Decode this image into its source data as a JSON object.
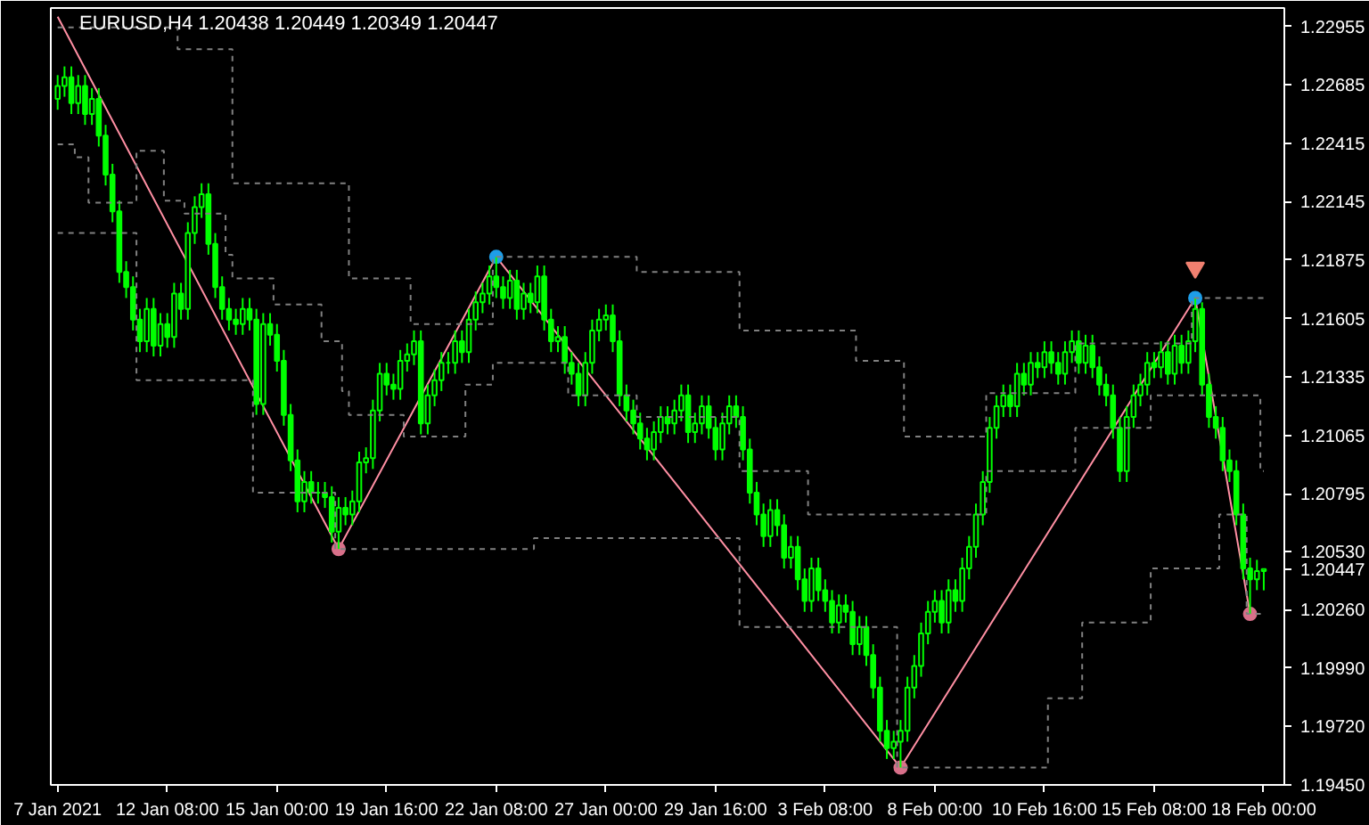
{
  "chart_data": {
    "type": "candlestick",
    "title": "EURUSD,H4 1.20438 1.20449 1.20349 1.20447",
    "color": "#00ff00",
    "categories": [
      "7 Jan 2021",
      null,
      null,
      null,
      null,
      null,
      null,
      null,
      null,
      null,
      null,
      null,
      null,
      null,
      null,
      null,
      "12 Jan 08:00",
      null,
      null,
      null,
      null,
      null,
      null,
      null,
      null,
      null,
      null,
      null,
      null,
      null,
      null,
      null,
      "15 Jan 00:00",
      null,
      null,
      null,
      null,
      null,
      null,
      null,
      null,
      null,
      null,
      null,
      null,
      null,
      null,
      null,
      "19 Jan 16:00",
      null,
      null,
      null,
      null,
      null,
      null,
      null,
      null,
      null,
      null,
      null,
      null,
      null,
      null,
      null,
      "22 Jan 08:00",
      null,
      null,
      null,
      null,
      null,
      null,
      null,
      null,
      null,
      null,
      null,
      null,
      null,
      null,
      null,
      "27 Jan 00:00",
      null,
      null,
      null,
      null,
      null,
      null,
      null,
      null,
      null,
      null,
      null,
      null,
      null,
      null,
      null,
      "29 Jan 16:00",
      null,
      null,
      null,
      null,
      null,
      null,
      null,
      null,
      null,
      null,
      null,
      null,
      null,
      null,
      null,
      "3 Feb 08:00",
      null,
      null,
      null,
      null,
      null,
      null,
      null,
      null,
      null,
      null,
      null,
      null,
      null,
      null,
      null,
      "8 Feb 00:00",
      null,
      null,
      null,
      null,
      null,
      null,
      null,
      null,
      null,
      null,
      null,
      null,
      null,
      null,
      null,
      "10 Feb 16:00",
      null,
      null,
      null,
      null,
      null,
      null,
      null,
      null,
      null,
      null,
      null,
      null,
      null,
      null,
      null,
      "15 Feb 08:00",
      null,
      null,
      null,
      null,
      null,
      null,
      null,
      null,
      null,
      null,
      null,
      null,
      null,
      null,
      null,
      "18 Feb 00:00"
    ],
    "ohlc": [
      [
        1.2262,
        1.2273,
        1.2257,
        1.2268
      ],
      [
        1.2268,
        1.2277,
        1.2263,
        1.2272
      ],
      [
        1.2272,
        1.2277,
        1.2255,
        1.226
      ],
      [
        1.226,
        1.2273,
        1.2255,
        1.2268
      ],
      [
        1.2268,
        1.2273,
        1.225,
        1.2255
      ],
      [
        1.2255,
        1.2267,
        1.225,
        1.2262
      ],
      [
        1.2262,
        1.2267,
        1.224,
        1.2245
      ],
      [
        1.2245,
        1.225,
        1.2222,
        1.2227
      ],
      [
        1.2227,
        1.2232,
        1.2205,
        1.221
      ],
      [
        1.221,
        1.2215,
        1.2177,
        1.2182
      ],
      [
        1.2182,
        1.2187,
        1.217,
        1.2175
      ],
      [
        1.2175,
        1.218,
        1.2155,
        1.216
      ],
      [
        1.216,
        1.2165,
        1.2145,
        1.215
      ],
      [
        1.215,
        1.217,
        1.2145,
        1.2165
      ],
      [
        1.2165,
        1.217,
        1.2143,
        1.2148
      ],
      [
        1.2148,
        1.2163,
        1.2143,
        1.2158
      ],
      [
        1.2158,
        1.2163,
        1.2147,
        1.2152
      ],
      [
        1.2152,
        1.2177,
        1.2147,
        1.2172
      ],
      [
        1.2172,
        1.2177,
        1.216,
        1.2165
      ],
      [
        1.2165,
        1.2205,
        1.216,
        1.22
      ],
      [
        1.22,
        1.2217,
        1.2195,
        1.2212
      ],
      [
        1.2212,
        1.2223,
        1.2207,
        1.2218
      ],
      [
        1.2218,
        1.2223,
        1.219,
        1.2195
      ],
      [
        1.2195,
        1.22,
        1.217,
        1.2175
      ],
      [
        1.2175,
        1.218,
        1.216,
        1.2165
      ],
      [
        1.2165,
        1.217,
        1.2155,
        1.216
      ],
      [
        1.216,
        1.2165,
        1.2153,
        1.2158
      ],
      [
        1.2158,
        1.217,
        1.2153,
        1.2165
      ],
      [
        1.2165,
        1.217,
        1.2155,
        1.216
      ],
      [
        1.216,
        1.2165,
        1.2116,
        1.2121
      ],
      [
        1.2121,
        1.2163,
        1.2116,
        1.2158
      ],
      [
        1.2158,
        1.2163,
        1.2148,
        1.2153
      ],
      [
        1.2153,
        1.2158,
        1.2136,
        1.2141
      ],
      [
        1.2141,
        1.2146,
        1.2111,
        1.2116
      ],
      [
        1.2116,
        1.2121,
        1.209,
        1.2095
      ],
      [
        1.2095,
        1.21,
        1.2071,
        1.2076
      ],
      [
        1.2076,
        1.209,
        1.2071,
        1.2085
      ],
      [
        1.2085,
        1.209,
        1.2075,
        1.208
      ],
      [
        1.208,
        1.2085,
        1.2075,
        1.208
      ],
      [
        1.208,
        1.2085,
        1.2073,
        1.2078
      ],
      [
        1.2078,
        1.2083,
        1.2057,
        1.2062
      ],
      [
        1.2062,
        1.2078,
        1.2054,
        1.2073
      ],
      [
        1.2073,
        1.2078,
        1.2065,
        1.207
      ],
      [
        1.207,
        1.2081,
        1.2065,
        1.2076
      ],
      [
        1.2076,
        1.2099,
        1.2071,
        1.2094
      ],
      [
        1.2094,
        1.2101,
        1.2089,
        1.2096
      ],
      [
        1.2096,
        1.2123,
        1.2091,
        1.2118
      ],
      [
        1.2118,
        1.214,
        1.2113,
        1.2135
      ],
      [
        1.2135,
        1.214,
        1.2125,
        1.213
      ],
      [
        1.213,
        1.2135,
        1.2123,
        1.2128
      ],
      [
        1.2128,
        1.2146,
        1.2123,
        1.2141
      ],
      [
        1.2141,
        1.2149,
        1.2136,
        1.2144
      ],
      [
        1.2144,
        1.2155,
        1.2139,
        1.215
      ],
      [
        1.215,
        1.2155,
        1.2107,
        1.2112
      ],
      [
        1.2112,
        1.213,
        1.2107,
        1.2125
      ],
      [
        1.2125,
        1.2137,
        1.212,
        1.2132
      ],
      [
        1.2132,
        1.2145,
        1.2127,
        1.214
      ],
      [
        1.214,
        1.2145,
        1.2135,
        1.214
      ],
      [
        1.214,
        1.2155,
        1.2135,
        1.215
      ],
      [
        1.215,
        1.2155,
        1.214,
        1.2145
      ],
      [
        1.2145,
        1.2165,
        1.214,
        1.216
      ],
      [
        1.216,
        1.2173,
        1.2155,
        1.2168
      ],
      [
        1.2168,
        1.2177,
        1.2163,
        1.2172
      ],
      [
        1.2172,
        1.2185,
        1.2167,
        1.218
      ],
      [
        1.218,
        1.2189,
        1.217,
        1.2175
      ],
      [
        1.2175,
        1.218,
        1.2165,
        1.217
      ],
      [
        1.217,
        1.2183,
        1.2165,
        1.2178
      ],
      [
        1.2178,
        1.2183,
        1.216,
        1.2165
      ],
      [
        1.2165,
        1.2177,
        1.216,
        1.2172
      ],
      [
        1.2172,
        1.2177,
        1.2163,
        1.2168
      ],
      [
        1.2168,
        1.2185,
        1.2163,
        1.218
      ],
      [
        1.218,
        1.2185,
        1.2155,
        1.216
      ],
      [
        1.216,
        1.2165,
        1.2145,
        1.215
      ],
      [
        1.215,
        1.2157,
        1.2145,
        1.2152
      ],
      [
        1.2152,
        1.2157,
        1.2135,
        1.214
      ],
      [
        1.214,
        1.2145,
        1.213,
        1.2135
      ],
      [
        1.2135,
        1.214,
        1.212,
        1.2125
      ],
      [
        1.2125,
        1.2145,
        1.212,
        1.214
      ],
      [
        1.214,
        1.216,
        1.2135,
        1.2155
      ],
      [
        1.2155,
        1.2165,
        1.215,
        1.216
      ],
      [
        1.216,
        1.2167,
        1.2155,
        1.2162
      ],
      [
        1.2162,
        1.2167,
        1.2145,
        1.215
      ],
      [
        1.215,
        1.2155,
        1.212,
        1.2125
      ],
      [
        1.2125,
        1.213,
        1.2113,
        1.2118
      ],
      [
        1.2118,
        1.2123,
        1.2107,
        1.2112
      ],
      [
        1.2112,
        1.2117,
        1.21,
        1.2105
      ],
      [
        1.2105,
        1.211,
        1.2095,
        1.21
      ],
      [
        1.21,
        1.2113,
        1.2095,
        1.2108
      ],
      [
        1.2108,
        1.212,
        1.2103,
        1.2115
      ],
      [
        1.2115,
        1.212,
        1.2107,
        1.2112
      ],
      [
        1.2112,
        1.2123,
        1.2107,
        1.2118
      ],
      [
        1.2118,
        1.213,
        1.2113,
        1.2125
      ],
      [
        1.2125,
        1.213,
        1.2103,
        1.2108
      ],
      [
        1.2108,
        1.2117,
        1.2103,
        1.2112
      ],
      [
        1.2112,
        1.2125,
        1.2107,
        1.212
      ],
      [
        1.212,
        1.2125,
        1.2105,
        1.211
      ],
      [
        1.211,
        1.2115,
        1.2095,
        1.21
      ],
      [
        1.21,
        1.2117,
        1.2095,
        1.2112
      ],
      [
        1.2112,
        1.2125,
        1.2107,
        1.212
      ],
      [
        1.212,
        1.2125,
        1.211,
        1.2115
      ],
      [
        1.2115,
        1.212,
        1.2095,
        1.21
      ],
      [
        1.21,
        1.2105,
        1.2075,
        1.208
      ],
      [
        1.208,
        1.2085,
        1.2065,
        1.207
      ],
      [
        1.207,
        1.2075,
        1.2055,
        1.206
      ],
      [
        1.206,
        1.2077,
        1.2055,
        1.2072
      ],
      [
        1.2072,
        1.2077,
        1.206,
        1.2065
      ],
      [
        1.2065,
        1.207,
        1.2045,
        1.205
      ],
      [
        1.205,
        1.206,
        1.2045,
        1.2055
      ],
      [
        1.2055,
        1.206,
        1.2035,
        1.204
      ],
      [
        1.204,
        1.2045,
        1.2025,
        1.203
      ],
      [
        1.203,
        1.205,
        1.2025,
        1.2045
      ],
      [
        1.2045,
        1.205,
        1.203,
        1.2035
      ],
      [
        1.2035,
        1.204,
        1.2025,
        1.203
      ],
      [
        1.203,
        1.2035,
        1.2015,
        1.202
      ],
      [
        1.202,
        1.2033,
        1.2015,
        1.2028
      ],
      [
        1.2028,
        1.2033,
        1.202,
        1.2025
      ],
      [
        1.2025,
        1.203,
        1.2005,
        1.201
      ],
      [
        1.201,
        1.2023,
        1.2005,
        1.2018
      ],
      [
        1.2018,
        1.2023,
        1.2,
        1.2005
      ],
      [
        1.2005,
        1.201,
        1.1985,
        1.199
      ],
      [
        1.199,
        1.1995,
        1.1965,
        1.197
      ],
      [
        1.197,
        1.1975,
        1.1957,
        1.1962
      ],
      [
        1.1962,
        1.197,
        1.1957,
        1.1965
      ],
      [
        1.1965,
        1.1975,
        1.1953,
        1.197
      ],
      [
        1.197,
        1.1995,
        1.1965,
        1.199
      ],
      [
        1.199,
        1.2005,
        1.1985,
        1.2
      ],
      [
        1.2,
        1.202,
        1.1995,
        1.2015
      ],
      [
        1.2015,
        1.203,
        1.201,
        1.2025
      ],
      [
        1.2025,
        1.2035,
        1.202,
        1.203
      ],
      [
        1.203,
        1.2035,
        1.2015,
        1.202
      ],
      [
        1.202,
        1.204,
        1.2015,
        1.2035
      ],
      [
        1.2035,
        1.204,
        1.2025,
        1.203
      ],
      [
        1.203,
        1.205,
        1.2025,
        1.2045
      ],
      [
        1.2045,
        1.206,
        1.204,
        1.2055
      ],
      [
        1.2055,
        1.2075,
        1.205,
        1.207
      ],
      [
        1.207,
        1.209,
        1.2065,
        1.2085
      ],
      [
        1.2085,
        1.2115,
        1.208,
        1.211
      ],
      [
        1.211,
        1.2125,
        1.2105,
        1.212
      ],
      [
        1.212,
        1.213,
        1.2115,
        1.2125
      ],
      [
        1.2125,
        1.213,
        1.2115,
        1.212
      ],
      [
        1.212,
        1.214,
        1.2115,
        1.2135
      ],
      [
        1.2135,
        1.214,
        1.2125,
        1.213
      ],
      [
        1.213,
        1.2145,
        1.2125,
        1.214
      ],
      [
        1.214,
        1.2145,
        1.2133,
        1.2138
      ],
      [
        1.2138,
        1.215,
        1.2133,
        1.2145
      ],
      [
        1.2145,
        1.215,
        1.2135,
        1.214
      ],
      [
        1.214,
        1.2145,
        1.213,
        1.2135
      ],
      [
        1.2135,
        1.215,
        1.213,
        1.2145
      ],
      [
        1.2145,
        1.2155,
        1.214,
        1.215
      ],
      [
        1.215,
        1.2155,
        1.2135,
        1.214
      ],
      [
        1.214,
        1.2153,
        1.2135,
        1.2148
      ],
      [
        1.2148,
        1.2153,
        1.2133,
        1.2138
      ],
      [
        1.2138,
        1.2143,
        1.2125,
        1.213
      ],
      [
        1.213,
        1.2135,
        1.212,
        1.2125
      ],
      [
        1.2125,
        1.213,
        1.2105,
        1.211
      ],
      [
        1.211,
        1.2115,
        1.2085,
        1.209
      ],
      [
        1.209,
        1.212,
        1.2085,
        1.2115
      ],
      [
        1.2115,
        1.213,
        1.211,
        1.2125
      ],
      [
        1.2125,
        1.2135,
        1.212,
        1.213
      ],
      [
        1.213,
        1.2145,
        1.2125,
        1.214
      ],
      [
        1.214,
        1.2145,
        1.2133,
        1.2138
      ],
      [
        1.2138,
        1.215,
        1.2133,
        1.2145
      ],
      [
        1.2145,
        1.215,
        1.213,
        1.2135
      ],
      [
        1.2135,
        1.2153,
        1.213,
        1.2148
      ],
      [
        1.2148,
        1.2153,
        1.2135,
        1.214
      ],
      [
        1.214,
        1.2155,
        1.2135,
        1.215
      ],
      [
        1.215,
        1.217,
        1.2145,
        1.2165
      ],
      [
        1.2165,
        1.2168,
        1.2125,
        1.213
      ],
      [
        1.213,
        1.2135,
        1.211,
        1.2115
      ],
      [
        1.2115,
        1.212,
        1.2105,
        1.211
      ],
      [
        1.211,
        1.2115,
        1.209,
        1.2095
      ],
      [
        1.2095,
        1.21,
        1.2085,
        1.209
      ],
      [
        1.209,
        1.2095,
        1.2065,
        1.207
      ],
      [
        1.207,
        1.2075,
        1.204,
        1.2045
      ],
      [
        1.2045,
        1.205,
        1.2024,
        1.204
      ],
      [
        1.204,
        1.2049,
        1.2035,
        1.20438
      ],
      [
        1.20438,
        1.20449,
        1.20349,
        1.20447
      ]
    ],
    "series": [
      {
        "type": "step",
        "color": "#808080",
        "line_style": "dashed",
        "values": [
          1.2295,
          1.2295,
          1.2295,
          1.2295,
          1.2295,
          1.2295,
          1.2295,
          1.2295,
          1.2295,
          1.2295,
          1.2295,
          1.2295,
          1.2295,
          1.2295,
          1.2295,
          1.2295,
          1.2295,
          1.2295,
          1.2285,
          1.2285,
          1.2285,
          1.2285,
          1.2285,
          1.2285,
          1.2285,
          1.2285,
          1.2223,
          1.2223,
          1.2223,
          1.2223,
          1.2223,
          1.2223,
          1.2223,
          1.2223,
          1.2223,
          1.2223,
          1.2223,
          1.2223,
          1.2223,
          1.2223,
          1.2223,
          1.2223,
          1.2223,
          1.2179,
          1.2179,
          1.2179,
          1.2179,
          1.2179,
          1.2179,
          1.2179,
          1.2179,
          1.2179,
          1.2158,
          1.2158,
          1.2158,
          1.2158,
          1.2158,
          1.2158,
          1.2158,
          1.2158,
          1.2158,
          1.2158,
          1.2158,
          1.2158,
          1.2189,
          1.2189,
          1.2189,
          1.2189,
          1.2189,
          1.2189,
          1.2189,
          1.2189,
          1.2189,
          1.2189,
          1.2189,
          1.2189,
          1.2189,
          1.2189,
          1.2189,
          1.2189,
          1.2189,
          1.2189,
          1.2189,
          1.2189,
          1.2189,
          1.2182,
          1.2182,
          1.2182,
          1.2182,
          1.2182,
          1.2182,
          1.2182,
          1.2182,
          1.2182,
          1.2182,
          1.2182,
          1.2182,
          1.2182,
          1.2182,
          1.2182,
          1.2155,
          1.2155,
          1.2155,
          1.2155,
          1.2155,
          1.2155,
          1.2155,
          1.2155,
          1.2155,
          1.2155,
          1.2155,
          1.2155,
          1.2155,
          1.2155,
          1.2155,
          1.2155,
          1.2155,
          1.2141,
          1.2141,
          1.2141,
          1.2141,
          1.2141,
          1.2141,
          1.2141,
          1.2106,
          1.2106,
          1.2106,
          1.2106,
          1.2106,
          1.2106,
          1.2106,
          1.2106,
          1.2106,
          1.2106,
          1.2106,
          1.2106,
          1.2126,
          1.2126,
          1.2126,
          1.2126,
          1.2126,
          1.2126,
          1.2126,
          1.2126,
          1.2126,
          1.2126,
          1.2126,
          1.2126,
          1.2126,
          1.2149,
          1.2149,
          1.2149,
          1.2149,
          1.2149,
          1.2149,
          1.2149,
          1.2149,
          1.2149,
          1.2149,
          1.2149,
          1.2149,
          1.2149,
          1.2149,
          1.2149,
          1.2149,
          1.2149,
          1.217,
          1.217,
          1.217,
          1.217,
          1.217,
          1.217,
          1.217,
          1.217,
          1.217,
          1.217,
          1.217
        ]
      },
      {
        "type": "step",
        "color": "#808080",
        "line_style": "dashed",
        "values": [
          1.2241,
          1.2241,
          1.2241,
          1.2235,
          1.2235,
          1.2214,
          1.2214,
          1.2214,
          1.2214,
          1.2214,
          1.2214,
          1.2214,
          1.2238,
          1.2238,
          1.2238,
          1.2238,
          1.2215,
          1.2215,
          1.2215,
          1.2209,
          1.2209,
          1.2209,
          1.2209,
          1.2209,
          1.2209,
          1.219,
          1.2179,
          1.2179,
          1.2179,
          1.2179,
          1.2179,
          1.2179,
          1.2167,
          1.2167,
          1.2167,
          1.2167,
          1.2167,
          1.2167,
          1.2167,
          1.215,
          1.215,
          1.215,
          1.2127,
          1.2116,
          1.2116,
          1.2116,
          1.2116,
          1.2116,
          1.2116,
          1.2116,
          1.2116,
          1.2106,
          1.2106,
          1.2106,
          1.2106,
          1.2106,
          1.2106,
          1.2106,
          1.2106,
          1.2106,
          1.213,
          1.213,
          1.213,
          1.213,
          1.214,
          1.214,
          1.214,
          1.214,
          1.214,
          1.214,
          1.214,
          1.214,
          1.214,
          1.214,
          1.214,
          1.2125,
          1.2125,
          1.2125,
          1.2125,
          1.2125,
          1.2125,
          1.2125,
          1.2125,
          1.2125,
          1.2125,
          1.2115,
          1.2115,
          1.2115,
          1.2115,
          1.2115,
          1.2115,
          1.2115,
          1.2115,
          1.2115,
          1.2115,
          1.2115,
          1.2115,
          1.2115,
          1.2115,
          1.2115,
          1.209,
          1.209,
          1.209,
          1.209,
          1.209,
          1.209,
          1.209,
          1.209,
          1.209,
          1.209,
          1.207,
          1.207,
          1.207,
          1.207,
          1.207,
          1.207,
          1.207,
          1.207,
          1.207,
          1.207,
          1.207,
          1.207,
          1.207,
          1.207,
          1.207,
          1.207,
          1.207,
          1.207,
          1.207,
          1.207,
          1.207,
          1.207,
          1.207,
          1.207,
          1.207,
          1.207,
          1.209,
          1.209,
          1.209,
          1.209,
          1.209,
          1.209,
          1.209,
          1.209,
          1.209,
          1.209,
          1.209,
          1.209,
          1.209,
          1.211,
          1.211,
          1.211,
          1.211,
          1.211,
          1.211,
          1.211,
          1.211,
          1.211,
          1.211,
          1.211,
          1.2125,
          1.2125,
          1.2125,
          1.2125,
          1.2125,
          1.2125,
          1.2125,
          1.2125,
          1.2125,
          1.2125,
          1.2125,
          1.2125,
          1.2125,
          1.2125,
          1.2125,
          1.2125,
          1.209
        ]
      },
      {
        "type": "step",
        "color": "#808080",
        "line_style": "dashed",
        "values": [
          1.22,
          1.22,
          1.22,
          1.22,
          1.22,
          1.22,
          1.22,
          1.22,
          1.22,
          1.22,
          1.22,
          1.22,
          1.2132,
          1.2132,
          1.2132,
          1.2132,
          1.2132,
          1.2132,
          1.2132,
          1.2132,
          1.2132,
          1.2132,
          1.2132,
          1.2132,
          1.2132,
          1.2132,
          1.2132,
          1.2132,
          1.2132,
          1.208,
          1.208,
          1.208,
          1.208,
          1.208,
          1.208,
          1.208,
          1.208,
          1.208,
          1.208,
          1.208,
          1.208,
          1.2054,
          1.2054,
          1.2054,
          1.2054,
          1.2054,
          1.2054,
          1.2054,
          1.2054,
          1.2054,
          1.2054,
          1.2054,
          1.2054,
          1.2054,
          1.2054,
          1.2054,
          1.2054,
          1.2054,
          1.2054,
          1.2054,
          1.2054,
          1.2054,
          1.2054,
          1.2054,
          1.2054,
          1.2054,
          1.2054,
          1.2054,
          1.2054,
          1.2054,
          1.2059,
          1.2059,
          1.2059,
          1.2059,
          1.2059,
          1.2059,
          1.2059,
          1.2059,
          1.2059,
          1.2059,
          1.2059,
          1.2059,
          1.2059,
          1.2059,
          1.2059,
          1.2059,
          1.2059,
          1.2059,
          1.2059,
          1.2059,
          1.2059,
          1.2059,
          1.2059,
          1.2059,
          1.2059,
          1.2059,
          1.2059,
          1.2059,
          1.2059,
          1.2059,
          1.2018,
          1.2018,
          1.2018,
          1.2018,
          1.2018,
          1.2018,
          1.2018,
          1.2018,
          1.2018,
          1.2018,
          1.2018,
          1.2018,
          1.2018,
          1.2018,
          1.2018,
          1.2018,
          1.2018,
          1.2018,
          1.2018,
          1.2018,
          1.2018,
          1.2018,
          1.2018,
          1.1953,
          1.1953,
          1.1953,
          1.1953,
          1.1953,
          1.1953,
          1.1953,
          1.1953,
          1.1953,
          1.1953,
          1.1953,
          1.1953,
          1.1953,
          1.1953,
          1.1953,
          1.1953,
          1.1953,
          1.1953,
          1.1953,
          1.1953,
          1.1953,
          1.1953,
          1.1985,
          1.1985,
          1.1985,
          1.1985,
          1.1985,
          1.202,
          1.202,
          1.202,
          1.202,
          1.202,
          1.202,
          1.202,
          1.202,
          1.202,
          1.202,
          1.2045,
          1.2045,
          1.2045,
          1.2045,
          1.2045,
          1.2045,
          1.2045,
          1.2045,
          1.2045,
          1.2045,
          1.207,
          1.207,
          1.207,
          1.207,
          1.2024,
          1.2024,
          1.2024
        ]
      },
      {
        "type": "line",
        "color": "#ff8fa3",
        "marker": "none",
        "line_style": "solid",
        "values": [
          1.23,
          null,
          null,
          null,
          null,
          null,
          null,
          null,
          null,
          null,
          null,
          null,
          null,
          null,
          null,
          null,
          null,
          null,
          null,
          null,
          null,
          null,
          null,
          null,
          null,
          null,
          null,
          null,
          null,
          null,
          null,
          null,
          null,
          null,
          null,
          null,
          null,
          null,
          null,
          null,
          null,
          1.2054,
          null,
          null,
          null,
          null,
          null,
          null,
          null,
          null,
          null,
          null,
          null,
          null,
          null,
          null,
          null,
          null,
          null,
          null,
          null,
          null,
          null,
          null,
          1.2189,
          null,
          null,
          null,
          null,
          null,
          null,
          null,
          null,
          null,
          null,
          null,
          null,
          null,
          null,
          null,
          null,
          null,
          null,
          null,
          null,
          null,
          null,
          null,
          null,
          null,
          null,
          null,
          null,
          null,
          null,
          null,
          null,
          null,
          null,
          null,
          null,
          null,
          null,
          null,
          null,
          null,
          null,
          null,
          null,
          null,
          null,
          null,
          null,
          null,
          null,
          null,
          null,
          null,
          null,
          null,
          null,
          null,
          null,
          1.1953,
          null,
          null,
          null,
          null,
          null,
          null,
          null,
          null,
          null,
          null,
          null,
          null,
          null,
          null,
          null,
          null,
          null,
          null,
          null,
          null,
          null,
          null,
          null,
          null,
          null,
          null,
          null,
          null,
          null,
          null,
          null,
          null,
          null,
          null,
          null,
          null,
          null,
          null,
          null,
          null,
          null,
          null,
          1.217,
          null,
          null,
          null,
          null,
          null,
          null,
          null,
          1.2024,
          null,
          null
        ]
      },
      {
        "type": "scatter",
        "marker": "circle",
        "color": "#d8708a",
        "values": [
          null,
          null,
          null,
          null,
          null,
          null,
          null,
          null,
          null,
          null,
          null,
          null,
          null,
          null,
          null,
          null,
          null,
          null,
          null,
          null,
          null,
          null,
          null,
          null,
          null,
          null,
          null,
          null,
          null,
          null,
          null,
          null,
          null,
          null,
          null,
          null,
          null,
          null,
          null,
          null,
          null,
          1.2054,
          null,
          null,
          null,
          null,
          null,
          null,
          null,
          null,
          null,
          null,
          null,
          null,
          null,
          null,
          null,
          null,
          null,
          null,
          null,
          null,
          null,
          null,
          null,
          null,
          null,
          null,
          null,
          null,
          null,
          null,
          null,
          null,
          null,
          null,
          null,
          null,
          null,
          null,
          null,
          null,
          null,
          null,
          null,
          null,
          null,
          null,
          null,
          null,
          null,
          null,
          null,
          null,
          null,
          null,
          null,
          null,
          null,
          null,
          null,
          null,
          null,
          null,
          null,
          null,
          null,
          null,
          null,
          null,
          null,
          null,
          null,
          null,
          null,
          null,
          null,
          null,
          null,
          null,
          null,
          null,
          null,
          1.1953,
          null,
          null,
          null,
          null,
          null,
          null,
          null,
          null,
          null,
          null,
          null,
          null,
          null,
          null,
          null,
          null,
          null,
          null,
          null,
          null,
          null,
          null,
          null,
          null,
          null,
          null,
          null,
          null,
          null,
          null,
          null,
          null,
          null,
          null,
          null,
          null,
          null,
          null,
          null,
          null,
          null,
          null,
          null,
          null,
          null,
          null,
          null,
          null,
          null,
          null,
          1.2024,
          null,
          null
        ]
      },
      {
        "type": "scatter",
        "marker": "circle",
        "color": "#1e9ee8",
        "values": [
          null,
          null,
          null,
          null,
          null,
          null,
          null,
          null,
          null,
          null,
          null,
          null,
          null,
          null,
          null,
          null,
          null,
          null,
          null,
          null,
          null,
          null,
          null,
          null,
          null,
          null,
          null,
          null,
          null,
          null,
          null,
          null,
          null,
          null,
          null,
          null,
          null,
          null,
          null,
          null,
          null,
          null,
          null,
          null,
          null,
          null,
          null,
          null,
          null,
          null,
          null,
          null,
          null,
          null,
          null,
          null,
          null,
          null,
          null,
          null,
          null,
          null,
          null,
          null,
          1.2189,
          null,
          null,
          null,
          null,
          null,
          null,
          null,
          null,
          null,
          null,
          null,
          null,
          null,
          null,
          null,
          null,
          null,
          null,
          null,
          null,
          null,
          null,
          null,
          null,
          null,
          null,
          null,
          null,
          null,
          null,
          null,
          null,
          null,
          null,
          null,
          null,
          null,
          null,
          null,
          null,
          null,
          null,
          null,
          null,
          null,
          null,
          null,
          null,
          null,
          null,
          null,
          null,
          null,
          null,
          null,
          null,
          null,
          null,
          null,
          null,
          null,
          null,
          null,
          null,
          null,
          null,
          null,
          null,
          null,
          null,
          null,
          null,
          null,
          null,
          null,
          null,
          null,
          null,
          null,
          null,
          null,
          null,
          null,
          null,
          null,
          null,
          null,
          null,
          null,
          null,
          null,
          null,
          null,
          null,
          null,
          null,
          null,
          null,
          null,
          null,
          null,
          1.217,
          null,
          null,
          null,
          null,
          null,
          null,
          null,
          null,
          null,
          null
        ]
      },
      {
        "type": "scatter",
        "marker": "triangle",
        "color": "#f08070",
        "values": [
          null,
          null,
          null,
          null,
          null,
          null,
          null,
          null,
          null,
          null,
          null,
          null,
          null,
          null,
          null,
          null,
          null,
          null,
          null,
          null,
          null,
          null,
          null,
          null,
          null,
          null,
          null,
          null,
          null,
          null,
          null,
          null,
          null,
          null,
          null,
          null,
          null,
          null,
          null,
          null,
          null,
          null,
          null,
          null,
          null,
          null,
          null,
          null,
          null,
          null,
          null,
          null,
          null,
          null,
          null,
          null,
          null,
          null,
          null,
          null,
          null,
          null,
          null,
          null,
          null,
          null,
          null,
          null,
          null,
          null,
          null,
          null,
          null,
          null,
          null,
          null,
          null,
          null,
          null,
          null,
          null,
          null,
          null,
          null,
          null,
          null,
          null,
          null,
          null,
          null,
          null,
          null,
          null,
          null,
          null,
          null,
          null,
          null,
          null,
          null,
          null,
          null,
          null,
          null,
          null,
          null,
          null,
          null,
          null,
          null,
          null,
          null,
          null,
          null,
          null,
          null,
          null,
          null,
          null,
          null,
          null,
          null,
          null,
          null,
          null,
          null,
          null,
          null,
          null,
          null,
          null,
          null,
          null,
          null,
          null,
          null,
          null,
          null,
          null,
          null,
          null,
          null,
          null,
          null,
          null,
          null,
          null,
          null,
          null,
          null,
          null,
          null,
          null,
          null,
          null,
          null,
          null,
          null,
          null,
          null,
          null,
          null,
          null,
          null,
          null,
          null,
          1.2184,
          null,
          null,
          null,
          null,
          null,
          null,
          null,
          null,
          null,
          null
        ]
      }
    ],
    "ylim": [
      1.1945,
      1.2304
    ],
    "yticks": [
      {
        "value": 1.22955,
        "label": "1.22955"
      },
      {
        "value": 1.22685,
        "label": "1.22685"
      },
      {
        "value": 1.22415,
        "label": "1.22415"
      },
      {
        "value": 1.22145,
        "label": "1.22145"
      },
      {
        "value": 1.21875,
        "label": "1.21875"
      },
      {
        "value": 1.21605,
        "label": "1.21605"
      },
      {
        "value": 1.21335,
        "label": "1.21335"
      },
      {
        "value": 1.21065,
        "label": "1.21065"
      },
      {
        "value": 1.20795,
        "label": "1.20795"
      },
      {
        "value": 1.2053,
        "label": "1.20530"
      },
      {
        "value": 1.20447,
        "label": "1.20447"
      },
      {
        "value": 1.2026,
        "label": "1.20260"
      },
      {
        "value": 1.1999,
        "label": "1.19990"
      },
      {
        "value": 1.1972,
        "label": "1.19720"
      },
      {
        "value": 1.1945,
        "label": "1.19450"
      }
    ],
    "grid": false
  }
}
